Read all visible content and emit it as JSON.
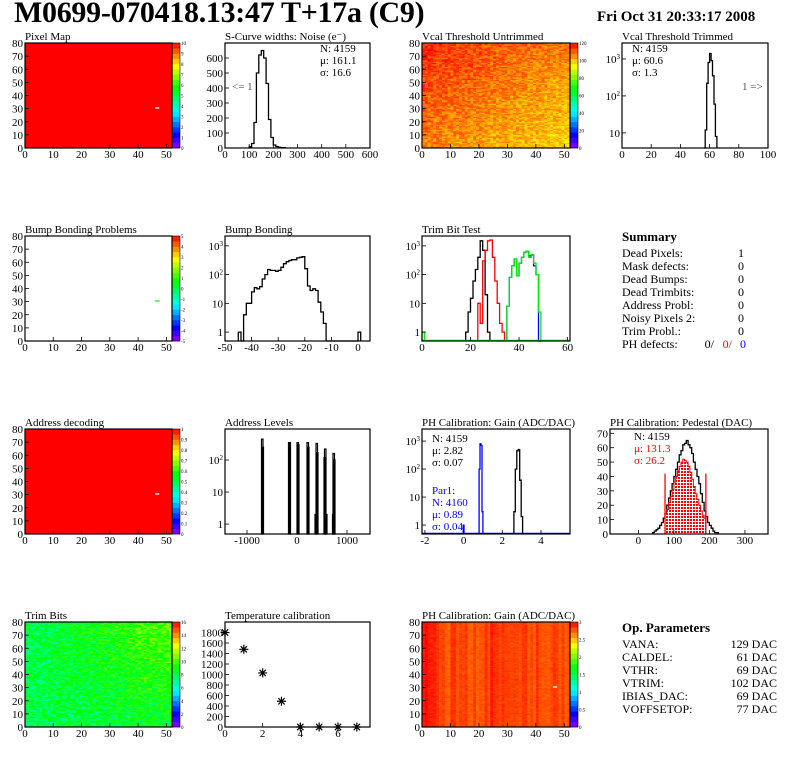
{
  "header": {
    "title": "M0699-070418.13:47 T+17a (C9)",
    "date": "Fri Oct 31 20:33:17 2008"
  },
  "summary": {
    "title": "Summary",
    "rows": [
      {
        "label": "Dead Pixels:",
        "value": "1"
      },
      {
        "label": "Mask defects:",
        "value": "0"
      },
      {
        "label": "Dead Bumps:",
        "value": "0"
      },
      {
        "label": "Dead Trimbits:",
        "value": "0"
      },
      {
        "label": "Address Probl:",
        "value": "0"
      },
      {
        "label": "Noisy Pixels 2:",
        "value": "0"
      },
      {
        "label": "Trim Probl.:",
        "value": "0"
      }
    ],
    "ph_defects": {
      "label": "PH defects:",
      "values": [
        "0/",
        "0/",
        "0"
      ],
      "colors": [
        "#000000",
        "#ff0000",
        "#0000ff"
      ]
    }
  },
  "op_parameters": {
    "title": "Op. Parameters",
    "rows": [
      {
        "label": "VANA:",
        "value": "129 DAC"
      },
      {
        "label": "CALDEL:",
        "value": "61 DAC"
      },
      {
        "label": "VTHR:",
        "value": "69 DAC"
      },
      {
        "label": "VTRIM:",
        "value": "102 DAC"
      },
      {
        "label": "IBIAS_DAC:",
        "value": "69 DAC"
      },
      {
        "label": "VOFFSETOP:",
        "value": "77 DAC"
      }
    ]
  },
  "chart_data": [
    {
      "id": "pixel_map",
      "type": "heatmap",
      "title": "Pixel Map",
      "xlim": [
        0,
        52
      ],
      "ylim": [
        0,
        80
      ],
      "zlim": [
        0,
        10
      ],
      "xticks": [
        "0",
        "10",
        "20",
        "30",
        "40",
        "50"
      ],
      "yticks": [
        "0",
        "10",
        "20",
        "30",
        "40",
        "50",
        "60",
        "70",
        "80"
      ],
      "zticks": [
        "0",
        "1",
        "2",
        "3",
        "4",
        "5",
        "6",
        "7",
        "8",
        "9",
        "10"
      ],
      "uniform_value": 10,
      "empty_pixels": [
        [
          46,
          30
        ]
      ]
    },
    {
      "id": "scurve",
      "type": "bar",
      "title": "S-Curve widths: Noise (e⁻)",
      "xlim": [
        0,
        600
      ],
      "ylim": [
        0,
        700
      ],
      "log": false,
      "xticks": [
        "0",
        "100",
        "200",
        "300",
        "400",
        "500",
        "600"
      ],
      "yticks": [
        "0",
        "100",
        "200",
        "300",
        "400",
        "500",
        "600"
      ],
      "series": [
        {
          "color": "#000000",
          "lo": 100,
          "width": 10,
          "values": [
            8,
            30,
            170,
            500,
            620,
            650,
            600,
            430,
            190,
            70,
            20,
            10,
            5,
            3,
            2
          ]
        }
      ],
      "stats": [
        {
          "text": "N: 4159",
          "color": "#000000"
        },
        {
          "text": "μ: 161.1",
          "color": "#000000"
        },
        {
          "text": "σ: 16.6",
          "color": "#000000"
        }
      ],
      "annotation": "<= 1"
    },
    {
      "id": "vcal_untrimmed",
      "type": "heatmap",
      "title": "Vcal Threshold Untrimmed",
      "xlim": [
        0,
        52
      ],
      "ylim": [
        0,
        80
      ],
      "zlim": [
        0,
        135
      ],
      "xticks": [
        "0",
        "10",
        "20",
        "30",
        "40",
        "50"
      ],
      "yticks": [
        "0",
        "10",
        "20",
        "30",
        "40",
        "50",
        "60",
        "70",
        "80"
      ],
      "zticks": [
        "0",
        "20",
        "40",
        "60",
        "80",
        "100",
        "120"
      ],
      "value_range": [
        100,
        130
      ]
    },
    {
      "id": "vcal_trimmed",
      "type": "bar",
      "title": "Vcal Threshold Trimmed",
      "xlim": [
        0,
        100
      ],
      "ylim": [
        3.9,
        2700
      ],
      "log": true,
      "xticks": [
        "0",
        "20",
        "40",
        "60",
        "80",
        "100"
      ],
      "yticks": [
        "10",
        "10^2",
        "10^3"
      ],
      "series": [
        {
          "color": "#000000",
          "lo": 56,
          "width": 1,
          "values": [
            3,
            12,
            220,
            800,
            1400,
            900,
            350,
            60,
            8
          ]
        }
      ],
      "stats": [
        {
          "text": "N: 4159",
          "color": "#000000"
        },
        {
          "text": "μ: 60.6",
          "color": "#000000"
        },
        {
          "text": "σ:  1.3",
          "color": "#000000"
        }
      ],
      "annotation": "1 =>"
    },
    {
      "id": "bump_problems",
      "type": "heatmap",
      "title": "Bump Bonding Problems",
      "xlim": [
        0,
        52
      ],
      "ylim": [
        0,
        80
      ],
      "zlim": [
        -5,
        5
      ],
      "xticks": [
        "0",
        "10",
        "20",
        "30",
        "40",
        "50"
      ],
      "yticks": [
        "0",
        "10",
        "20",
        "30",
        "40",
        "50",
        "60",
        "70",
        "80"
      ],
      "zticks": [
        "-5",
        "-4",
        "-3",
        "-2",
        "-1",
        "0",
        "1",
        "2",
        "3",
        "4",
        "5"
      ],
      "pixels": [
        [
          46,
          30,
          0.5
        ]
      ]
    },
    {
      "id": "bump_bonding",
      "type": "bar",
      "title": "Bump Bonding",
      "xlim": [
        -50,
        4.5
      ],
      "ylim": [
        0.49,
        2200
      ],
      "log": true,
      "xticks": [
        "-50",
        "-40",
        "-30",
        "-20",
        "-10",
        "0"
      ],
      "yticks": [
        "1",
        "10",
        "10^2",
        "10^3"
      ],
      "series": [
        {
          "color": "#000000",
          "lo": -45,
          "width": 1,
          "values": [
            1,
            0,
            4,
            10,
            10,
            25,
            35,
            32,
            38,
            70,
            100,
            150,
            140,
            140,
            130,
            140,
            180,
            240,
            280,
            310,
            330,
            330,
            380,
            400,
            420,
            160,
            40,
            28,
            32,
            28,
            11,
            5,
            2,
            0,
            0,
            0,
            0,
            0,
            0,
            0,
            0,
            0,
            0,
            0,
            0,
            1
          ]
        }
      ]
    },
    {
      "id": "trim_bit_test",
      "type": "bar",
      "title": "Trim Bit Test",
      "xlim": [
        0,
        61
      ],
      "ylim": [
        0.49,
        2200
      ],
      "log": true,
      "xticks": [
        "0",
        "20",
        "40",
        "60"
      ],
      "yticks": [
        "1",
        "10",
        "10^2",
        "10^3"
      ],
      "series": [
        {
          "color": "#000000",
          "lo": 18,
          "width": 1,
          "values": [
            1,
            5,
            15,
            60,
            150,
            400,
            1500,
            700,
            20,
            1
          ]
        },
        {
          "color": "#ff0000",
          "lo": 23,
          "width": 1,
          "values": [
            10,
            2,
            300,
            700,
            1500,
            1600,
            400,
            60,
            10,
            2,
            1
          ]
        },
        {
          "color": "#0000ff",
          "lo": 35,
          "width": 1,
          "values": [
            8,
            80,
            200,
            350,
            90,
            250,
            400,
            600,
            650,
            450,
            480,
            200,
            100,
            0
          ]
        },
        {
          "color": "#00ee00",
          "lo": 35,
          "width": 1,
          "values": [
            8,
            80,
            200,
            350,
            90,
            250,
            400,
            600,
            650,
            400,
            500,
            250,
            100,
            5
          ]
        },
        {
          "color": "#00ee00",
          "lo": 0,
          "width": 1,
          "values": [
            1
          ]
        }
      ]
    },
    {
      "id": "address_decoding",
      "type": "heatmap",
      "title": "Address decoding",
      "xlim": [
        0,
        52
      ],
      "ylim": [
        0,
        80
      ],
      "zlim": [
        0,
        1
      ],
      "xticks": [
        "0",
        "10",
        "20",
        "30",
        "40",
        "50"
      ],
      "yticks": [
        "0",
        "10",
        "20",
        "30",
        "40",
        "50",
        "60",
        "70",
        "80"
      ],
      "zticks": [
        "0",
        "0.1",
        "0.2",
        "0.3",
        "0.4",
        "0.5",
        "0.6",
        "0.7",
        "0.8",
        "0.9",
        "1"
      ],
      "uniform_value": 1,
      "empty_pixels": [
        [
          46,
          30
        ]
      ]
    },
    {
      "id": "address_levels",
      "type": "bar",
      "title": "Address Levels",
      "xlim": [
        -1440,
        1460
      ],
      "ylim": [
        0.49,
        930
      ],
      "log": true,
      "xticks": [
        "-1000",
        "0",
        "1000"
      ],
      "yticks": [
        "1",
        "10",
        "10^2"
      ],
      "spike_width": 10,
      "spikes": [
        [
          -710,
          450
        ],
        [
          -700,
          250
        ],
        [
          -170,
          350
        ],
        [
          -160,
          350
        ],
        [
          0,
          350
        ],
        [
          10,
          300
        ],
        [
          200,
          350
        ],
        [
          210,
          250
        ],
        [
          360,
          2
        ],
        [
          380,
          330
        ],
        [
          390,
          170
        ],
        [
          540,
          120
        ],
        [
          550,
          220
        ],
        [
          570,
          2
        ],
        [
          710,
          2
        ],
        [
          720,
          160
        ],
        [
          730,
          100
        ]
      ]
    },
    {
      "id": "ph_gain",
      "type": "bar",
      "title": "PH Calibration: Gain (ADC/DAC)",
      "xlim": [
        -2.15,
        5.5
      ],
      "ylim": [
        0.48,
        2700
      ],
      "log": true,
      "xticks": [
        "-2",
        "0",
        "2",
        "4"
      ],
      "yticks": [
        "1",
        "10",
        "10^2",
        "10^3"
      ],
      "series": [
        {
          "color": "#000000",
          "lo": 2.6,
          "width": 0.075,
          "values": [
            3,
            100,
            450,
            500,
            40,
            2
          ]
        },
        {
          "color": "#0000ff",
          "lo": 0.8,
          "width": 0.05,
          "values": [
            100,
            800,
            700,
            3
          ]
        },
        {
          "color": "#0000ff",
          "lo": -0.02,
          "width": 0.04,
          "values": [
            1
          ]
        }
      ],
      "stats": [
        {
          "text": "N: 4159",
          "color": "#000000"
        },
        {
          "text": "μ: 2.82",
          "color": "#000000"
        },
        {
          "text": "σ: 0.07",
          "color": "#000000"
        }
      ],
      "stats2": [
        {
          "text": "Par1:",
          "color": "#0000ff"
        },
        {
          "text": "N: 4160",
          "color": "#0000ff"
        },
        {
          "text": "μ: 0.89",
          "color": "#0000ff"
        },
        {
          "text": "σ: 0.04",
          "color": "#0000ff"
        }
      ]
    },
    {
      "id": "ph_pedestal",
      "type": "bar",
      "title": "PH Calibration: Pedestal (DAC)",
      "xlim": [
        -80,
        365
      ],
      "ylim": [
        0,
        73
      ],
      "log": false,
      "xticks": [
        "0",
        "100",
        "200",
        "300"
      ],
      "yticks": [
        "0",
        "10",
        "20",
        "30",
        "40",
        "50",
        "60",
        "70"
      ],
      "series": [
        {
          "color": "#000000",
          "lo": 40,
          "width": 5,
          "values": [
            1,
            2,
            3,
            4,
            6,
            8,
            11,
            14,
            20,
            25,
            30,
            35,
            40,
            45,
            50,
            55,
            58,
            62,
            63,
            65,
            62,
            60,
            56,
            50,
            45,
            40,
            35,
            28,
            22,
            16,
            12,
            8,
            6,
            4,
            2,
            1,
            1
          ]
        },
        {
          "color": "#ff0000",
          "fill": true,
          "lo": 75,
          "width": 5,
          "values": [
            14,
            17,
            22,
            26,
            31,
            36,
            40,
            44,
            47,
            50,
            52,
            51,
            50,
            47,
            43,
            38,
            33,
            28,
            24,
            20,
            16,
            13,
            11
          ]
        }
      ],
      "cut_lines": {
        "color": "#ff0000",
        "x": [
          75,
          190
        ],
        "height": 42
      },
      "stats": [
        {
          "text": "N: 4159",
          "color": "#000000"
        },
        {
          "text": "μ: 131.3",
          "color": "#ff0000"
        },
        {
          "text": "σ: 26.2",
          "color": "#ff0000"
        }
      ]
    },
    {
      "id": "trim_bits",
      "type": "heatmap",
      "title": "Trim Bits",
      "xlim": [
        0,
        52
      ],
      "ylim": [
        0,
        80
      ],
      "zlim": [
        0,
        16
      ],
      "xticks": [
        "0",
        "10",
        "20",
        "30",
        "40",
        "50"
      ],
      "yticks": [
        "0",
        "10",
        "20",
        "30",
        "40",
        "50",
        "60",
        "70",
        "80"
      ],
      "zticks": [
        "0",
        "2",
        "4",
        "6",
        "8",
        "10",
        "12",
        "14",
        "16"
      ],
      "value_range": [
        5,
        12
      ]
    },
    {
      "id": "temperature",
      "type": "scatter",
      "title": "Temperature calibration",
      "xlim": [
        0,
        7.7
      ],
      "ylim": [
        0,
        2000
      ],
      "log": false,
      "xticks": [
        "0",
        "2",
        "4",
        "6"
      ],
      "yticks": [
        "0",
        "200",
        "400",
        "600",
        "800",
        "1000",
        "1200",
        "1400",
        "1600",
        "1800"
      ],
      "points": [
        [
          0,
          1800
        ],
        [
          1,
          1480
        ],
        [
          2,
          1030
        ],
        [
          3,
          490
        ],
        [
          4,
          0
        ],
        [
          5,
          0
        ],
        [
          6,
          0
        ],
        [
          7,
          0
        ]
      ]
    },
    {
      "id": "ph_gain_map",
      "type": "heatmap",
      "title": "PH Calibration: Gain (ADC/DAC)",
      "xlim": [
        0,
        52
      ],
      "ylim": [
        0,
        80
      ],
      "zlim": [
        0,
        3
      ],
      "xticks": [
        "0",
        "10",
        "20",
        "30",
        "40",
        "50"
      ],
      "yticks": [
        "0",
        "10",
        "20",
        "30",
        "40",
        "50",
        "60",
        "70",
        "80"
      ],
      "zticks": [
        "0",
        "0.5",
        "1",
        "1.5",
        "2",
        "2.5",
        "3"
      ],
      "value_range": [
        2.6,
        3.0
      ],
      "empty_pixels": [
        [
          46,
          30
        ]
      ]
    }
  ]
}
